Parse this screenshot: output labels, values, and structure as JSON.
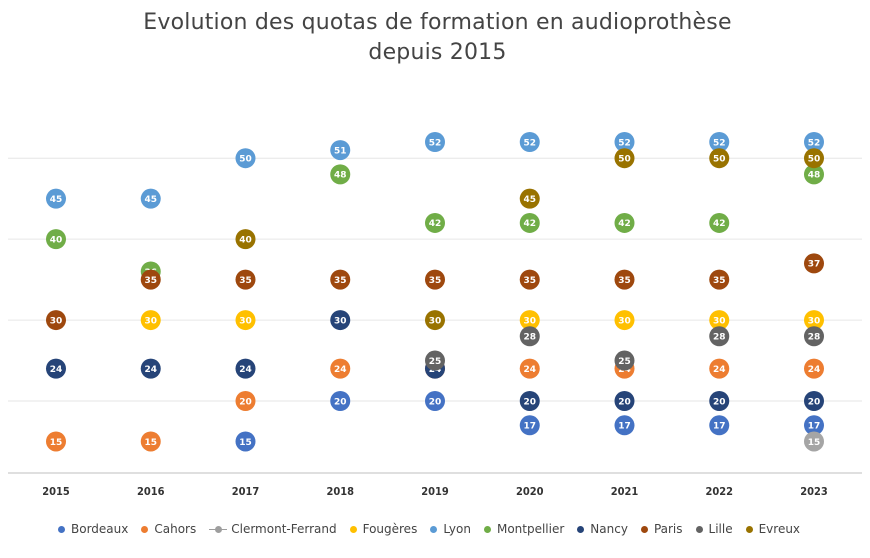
{
  "chart_data": {
    "type": "scatter",
    "title_line1": "Evolution des quotas de formation en audioprothèse",
    "title_line2": "depuis 2015",
    "xlabel": "",
    "ylabel": "",
    "categories": [
      "2015",
      "2016",
      "2017",
      "2018",
      "2019",
      "2020",
      "2021",
      "2022",
      "2023"
    ],
    "ylim": [
      10,
      55
    ],
    "grid": true,
    "legend_position": "bottom",
    "series": [
      {
        "name": "Bordeaux",
        "color": "#4472C4",
        "values": [
          null,
          null,
          15,
          20,
          20,
          17,
          17,
          17,
          17
        ]
      },
      {
        "name": "Cahors",
        "color": "#ED7D31",
        "values": [
          15,
          15,
          20,
          24,
          24,
          24,
          24,
          24,
          24
        ]
      },
      {
        "name": "Clermont-Ferrand",
        "color": "#A5A5A5",
        "values": [
          null,
          null,
          null,
          null,
          null,
          null,
          null,
          null,
          15
        ]
      },
      {
        "name": "Fougères",
        "color": "#FFC000",
        "values": [
          null,
          30,
          30,
          null,
          null,
          30,
          30,
          30,
          30
        ]
      },
      {
        "name": "Lyon",
        "color": "#5B9BD5",
        "values": [
          45,
          45,
          50,
          51,
          52,
          52,
          52,
          52,
          52
        ]
      },
      {
        "name": "Montpellier",
        "color": "#70AD47",
        "values": [
          40,
          36,
          null,
          48,
          42,
          42,
          42,
          42,
          48
        ]
      },
      {
        "name": "Nancy",
        "color": "#264478",
        "values": [
          24,
          24,
          24,
          30,
          24,
          20,
          20,
          20,
          20
        ]
      },
      {
        "name": "Paris",
        "color": "#9E480E",
        "values": [
          30,
          35,
          35,
          35,
          35,
          35,
          35,
          35,
          37
        ]
      },
      {
        "name": "Lille",
        "color": "#636363",
        "values": [
          null,
          null,
          null,
          null,
          25,
          28,
          25,
          28,
          28
        ]
      },
      {
        "name": "Evreux",
        "color": "#997300",
        "values": [
          null,
          null,
          40,
          null,
          30,
          45,
          50,
          50,
          50
        ]
      }
    ]
  }
}
